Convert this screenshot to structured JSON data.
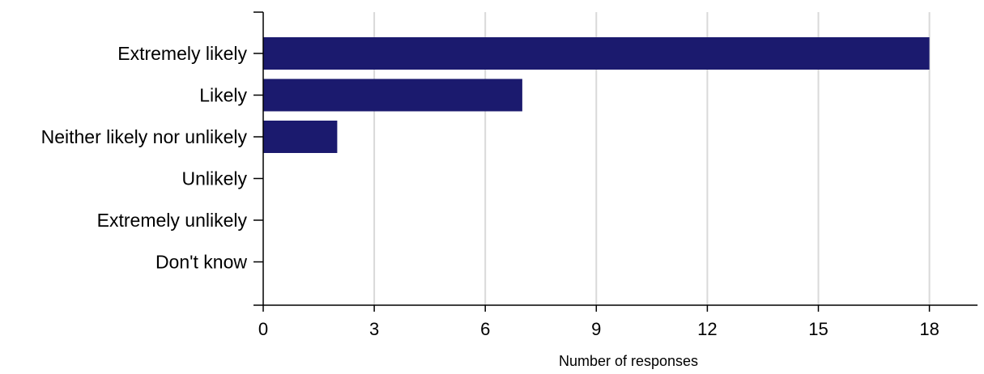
{
  "chart_data": {
    "type": "bar",
    "orientation": "horizontal",
    "categories": [
      "Extremely likely",
      "Likely",
      "Neither likely nor unlikely",
      "Unlikely",
      "Extremely unlikely",
      "Don't know"
    ],
    "values": [
      18,
      7,
      2,
      0,
      0,
      0
    ],
    "xlabel": "Number of responses",
    "ylabel": "",
    "xlim": [
      0,
      19.3
    ],
    "xticks": [
      0,
      3,
      6,
      9,
      12,
      15,
      18
    ],
    "grid": "vertical",
    "colors": {
      "bar": "#1b1a6e",
      "grid": "#d9d9d9",
      "axis": "#000000"
    }
  }
}
